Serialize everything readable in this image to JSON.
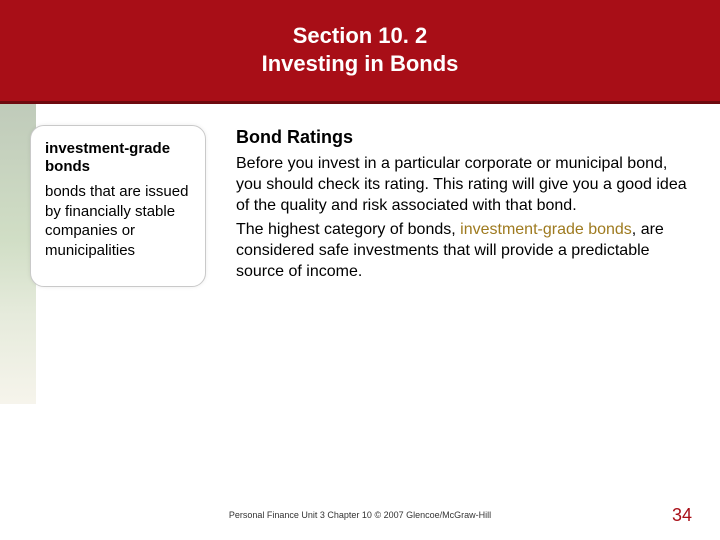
{
  "header": {
    "line1": "Section 10. 2",
    "line2": "Investing in Bonds"
  },
  "sidebar": {
    "term": "investment-grade bonds",
    "definition": "bonds that are issued by financially stable companies or municipalities"
  },
  "main": {
    "heading": "Bond Ratings",
    "para1": "Before you invest in a particular corporate or municipal bond, you should check its rating. This rating will give you a good idea of the quality and risk associated with that bond.",
    "para2_pre": "The highest category of bonds, ",
    "para2_highlight": "investment-grade bonds",
    "para2_post": ", are considered safe investments that will provide a predictable source of income."
  },
  "footer": {
    "text": "Personal Finance  Unit 3  Chapter 10  © 2007  Glencoe/McGraw-Hill",
    "page": "34"
  },
  "colors": {
    "header_bg": "#a80e17",
    "header_border": "#6e0a0f",
    "highlight": "#9e7a1f",
    "page_number": "#a80e17"
  }
}
